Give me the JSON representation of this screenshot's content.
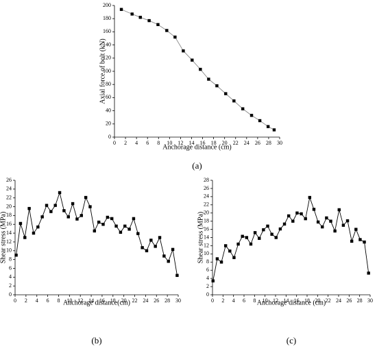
{
  "chart_data": [
    {
      "type": "line",
      "panel_label": "(a)",
      "x_label": "Anchorage distance (cm)",
      "y_label": "Axial force of bolt (kN)",
      "x": [
        1.25,
        3.2,
        4.7,
        6.3,
        7.9,
        9.5,
        11,
        12.5,
        14.1,
        15.6,
        17.1,
        18.6,
        20.2,
        21.7,
        23.3,
        24.9,
        26.4,
        27.9,
        29
      ],
      "values": [
        194,
        187,
        182,
        177,
        171,
        162,
        152,
        131,
        117,
        103,
        88,
        78,
        66,
        55,
        43,
        33,
        25,
        16,
        11
      ],
      "color": "#888888",
      "marker_color": "#000000",
      "xlim": [
        0,
        30
      ],
      "xticks": [
        0,
        2,
        4,
        6,
        8,
        10,
        12,
        14,
        16,
        18,
        20,
        22,
        24,
        26,
        28,
        30
      ],
      "ylim": [
        0,
        200
      ],
      "yticks": [
        0,
        20,
        40,
        60,
        80,
        100,
        120,
        140,
        160,
        180,
        200
      ]
    },
    {
      "type": "line",
      "panel_label": "(b)",
      "x_label": "Anchorage distance(cm)",
      "y_label": "Shear stress (MPa)",
      "x": [
        0.2,
        1.0,
        1.8,
        2.6,
        3.4,
        4.2,
        5.0,
        5.8,
        6.6,
        7.4,
        8.2,
        9.0,
        9.8,
        10.6,
        11.4,
        12.2,
        13.0,
        13.8,
        14.6,
        15.4,
        16.2,
        17.0,
        17.8,
        18.6,
        19.4,
        20.2,
        21.0,
        21.8,
        22.6,
        23.4,
        24.2,
        25.0,
        25.8,
        26.6,
        27.4,
        28.2,
        29.0,
        29.8
      ],
      "values": [
        9,
        16.2,
        13,
        19.6,
        14,
        15.4,
        17.7,
        20.3,
        18.9,
        20.3,
        23.2,
        19.1,
        17.7,
        20.7,
        17.2,
        18,
        22.1,
        20,
        14.5,
        16.5,
        16,
        17.6,
        17.3,
        15.6,
        14.2,
        15.6,
        14.9,
        17.3,
        13.9,
        10.7,
        10,
        12.4,
        11,
        13,
        8.8,
        7.6,
        10.3,
        4.4
      ],
      "color": "#000000",
      "marker_color": "#000000",
      "xlim": [
        0,
        30
      ],
      "xticks": [
        0,
        2,
        4,
        6,
        8,
        10,
        12,
        14,
        16,
        18,
        20,
        22,
        24,
        26,
        28,
        30
      ],
      "ylim": [
        0,
        26
      ],
      "yticks": [
        0,
        2,
        4,
        6,
        8,
        10,
        12,
        14,
        16,
        18,
        20,
        22,
        24,
        26
      ]
    },
    {
      "type": "line",
      "panel_label": "(c)",
      "x_label": "Anchorage distance (cm)",
      "y_label": "Shear stress (MPa)",
      "x": [
        0.1,
        0.9,
        1.7,
        2.5,
        3.3,
        4.1,
        4.9,
        5.7,
        6.5,
        7.3,
        8.1,
        8.9,
        9.7,
        10.5,
        11.3,
        12.1,
        12.9,
        13.7,
        14.5,
        15.3,
        16.1,
        16.9,
        17.7,
        18.5,
        19.3,
        20.1,
        20.9,
        21.7,
        22.5,
        23.3,
        24.1,
        24.9,
        25.7,
        26.5,
        27.3,
        28.1,
        28.9,
        29.7
      ],
      "values": [
        3.4,
        8.8,
        8,
        12,
        10.7,
        9.1,
        12.4,
        14.3,
        14,
        12.4,
        15.2,
        13.8,
        15.9,
        16.8,
        14.8,
        14,
        16.1,
        17.3,
        19.3,
        18,
        20,
        19.8,
        18.6,
        23.8,
        20.9,
        17.8,
        16.6,
        18.8,
        18,
        15.6,
        20.8,
        17,
        18.1,
        13.1,
        16,
        13.5,
        12.9,
        5.3
      ],
      "color": "#000000",
      "marker_color": "#000000",
      "xlim": [
        0,
        30
      ],
      "xticks": [
        0,
        2,
        4,
        6,
        8,
        10,
        12,
        14,
        16,
        18,
        20,
        22,
        24,
        26,
        28,
        30
      ],
      "ylim": [
        0,
        28
      ],
      "yticks": [
        0,
        2,
        4,
        6,
        8,
        10,
        12,
        14,
        16,
        18,
        20,
        22,
        24,
        26,
        28
      ]
    }
  ]
}
